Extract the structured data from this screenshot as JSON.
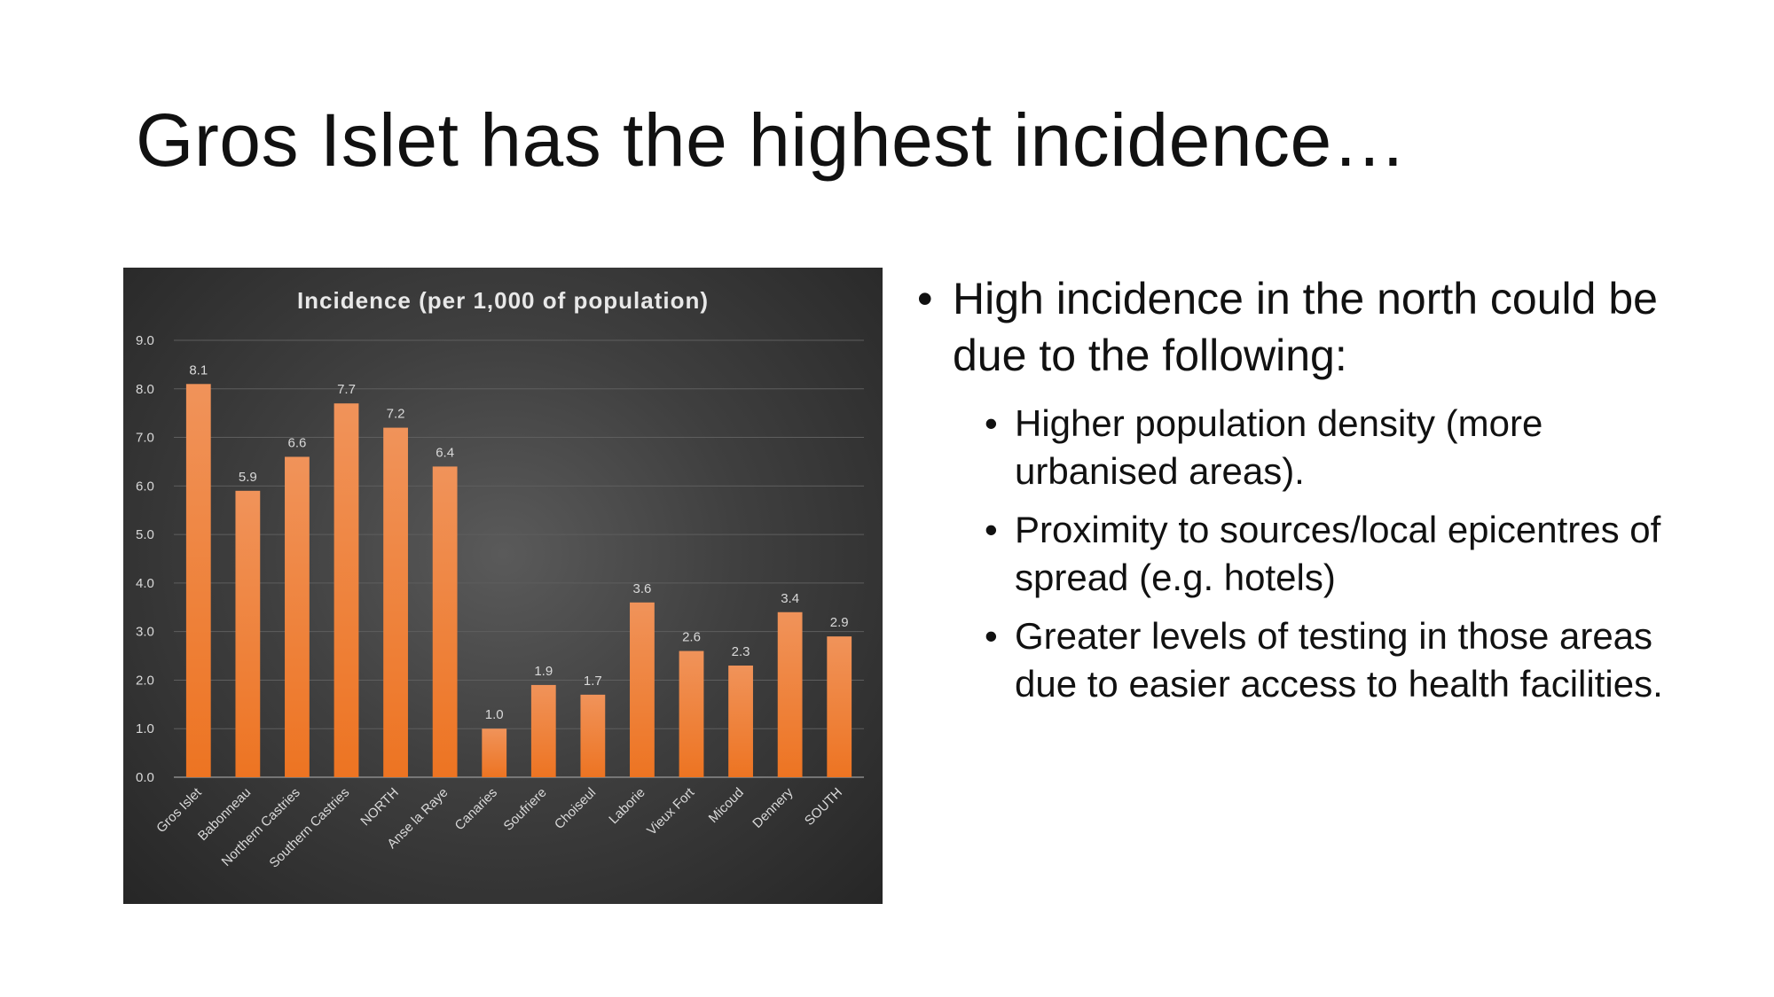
{
  "slide": {
    "title": "Gros Islet has the highest incidence…"
  },
  "bullets": {
    "main": "High incidence in the north could be due to the following:",
    "sub": [
      "Higher population density (more urbanised areas).",
      "Proximity to sources/local epicentres of spread (e.g. hotels)",
      "Greater levels of testing in those areas due to easier access to health facilities."
    ]
  },
  "colors": {
    "bar_top": "#f0935a",
    "bar_bottom": "#ed7422",
    "panel_bg": "#3f3f3f",
    "text_light": "#d9d9d9",
    "gridline": "#5e5e5e"
  },
  "chart_data": {
    "type": "bar",
    "title": "Incidence (per 1,000 of population)",
    "categories": [
      "Gros Islet",
      "Babonneau",
      "Northern Castries",
      "Southern Castries",
      "NORTH",
      "Anse la Raye",
      "Canaries",
      "Soufriere",
      "Choiseul",
      "Laborie",
      "Vieux Fort",
      "Micoud",
      "Dennery",
      "SOUTH"
    ],
    "values": [
      8.1,
      5.9,
      6.6,
      7.7,
      7.2,
      6.4,
      1.0,
      1.9,
      1.7,
      3.6,
      2.6,
      2.3,
      3.4,
      2.9
    ],
    "data_labels": [
      "8.1",
      "5.9",
      "6.6",
      "7.7",
      "7.2",
      "6.4",
      "1.0",
      "1.9",
      "1.7",
      "3.6",
      "2.6",
      "2.3",
      "3.4",
      "2.9"
    ],
    "ylim": [
      0,
      9
    ],
    "yticks": [
      "0.0",
      "1.0",
      "2.0",
      "3.0",
      "4.0",
      "5.0",
      "6.0",
      "7.0",
      "8.0",
      "9.0"
    ],
    "xlabel": "",
    "ylabel": "",
    "grid": true,
    "legend": "none"
  }
}
